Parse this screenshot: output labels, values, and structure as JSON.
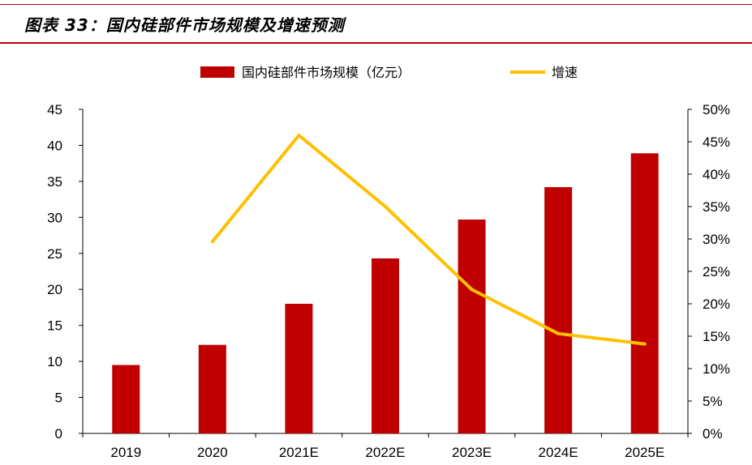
{
  "figure_title": "图表 33：国内硅部件市场规模及增速预测",
  "colors": {
    "bar": "#c00000",
    "line": "#ffc000",
    "rule": "#c00000",
    "axis": "#000000"
  },
  "chart_data": {
    "type": "bar+line",
    "categories": [
      "2019",
      "2020",
      "2021E",
      "2022E",
      "2023E",
      "2024E",
      "2025E"
    ],
    "series": [
      {
        "name": "国内硅部件市场规模（亿元）",
        "type": "bar",
        "axis": "left",
        "values": [
          9.5,
          12.3,
          18.0,
          24.3,
          29.7,
          34.2,
          38.9
        ]
      },
      {
        "name": "增速",
        "type": "line",
        "axis": "right",
        "values": [
          null,
          29.6,
          46.0,
          35.0,
          22.2,
          15.4,
          13.8
        ]
      }
    ],
    "left_axis": {
      "min": 0,
      "max": 45,
      "step": 5,
      "ticks": [
        "0",
        "5",
        "10",
        "15",
        "20",
        "25",
        "30",
        "35",
        "40",
        "45"
      ]
    },
    "right_axis": {
      "min": 0,
      "max": 50,
      "step": 5,
      "ticks": [
        "0%",
        "5%",
        "10%",
        "15%",
        "20%",
        "25%",
        "30%",
        "35%",
        "40%",
        "45%",
        "50%"
      ]
    },
    "legend": [
      "国内硅部件市场规模（亿元）",
      "增速"
    ],
    "legend_position": "top-center",
    "grid": false
  }
}
